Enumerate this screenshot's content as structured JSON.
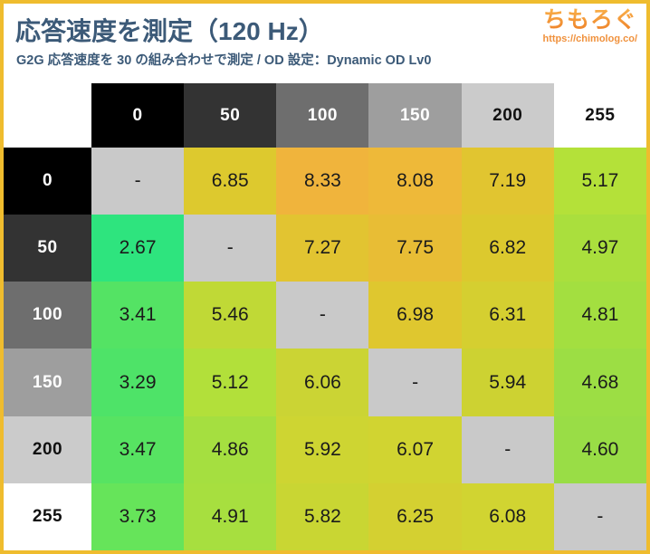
{
  "page": {
    "title": "応答速度を測定（120 Hz）",
    "subtitle": "G2G 応答速度を 30 の組み合わせで測定 / OD 設定：Dynamic OD Lv0",
    "logo": {
      "text": "ちもろぐ",
      "url": "https://chimolog.co/"
    },
    "colors": {
      "frame_border": "#efbc2e",
      "heading_text": "#3c5a78",
      "logo_gradient_top": "#f9b04a",
      "logo_gradient_bottom": "#ed7d26",
      "logo_url_text": "#f0913c",
      "value_text": "#1b1b1b",
      "diagonal_cell": "#c9c9c9"
    }
  },
  "chart_data": {
    "type": "heatmap",
    "title": "応答速度を測定（120 Hz）",
    "subtitle": "G2G 応答速度を 30 の組み合わせで測定 / OD 設定：Dynamic OD Lv0",
    "x_categories": [
      "0",
      "50",
      "100",
      "150",
      "200",
      "255"
    ],
    "y_categories": [
      "0",
      "50",
      "100",
      "150",
      "200",
      "255"
    ],
    "axis_cell_colors": [
      "#000000",
      "#333333",
      "#6e6e6e",
      "#9e9e9e",
      "#cbcbcb",
      "#ffffff"
    ],
    "axis_text_colors": [
      "#ffffff",
      "#ffffff",
      "#ffffff",
      "#ffffff",
      "#111111",
      "#111111"
    ],
    "null_display": "-",
    "value_range_observed": [
      2.67,
      8.33
    ],
    "values": [
      [
        null,
        6.85,
        8.33,
        8.08,
        7.19,
        5.17
      ],
      [
        2.67,
        null,
        7.27,
        7.75,
        6.82,
        4.97
      ],
      [
        3.41,
        5.46,
        null,
        6.98,
        6.31,
        4.81
      ],
      [
        3.29,
        5.12,
        6.06,
        null,
        5.94,
        4.68
      ],
      [
        3.47,
        4.86,
        5.92,
        6.07,
        null,
        4.6
      ],
      [
        3.73,
        4.91,
        5.82,
        6.25,
        6.08,
        null
      ]
    ],
    "cell_colors": [
      [
        "#c9c9c9",
        "#ddc92e",
        "#f0b43c",
        "#eeb939",
        "#e1c530",
        "#b4e139"
      ],
      [
        "#2ee47e",
        "#c9c9c9",
        "#e2c431",
        "#e8bd35",
        "#dcc92e",
        "#aadf3d"
      ],
      [
        "#54e364",
        "#c0d936",
        "#c9c9c9",
        "#dfc72f",
        "#d5cf30",
        "#a3df40"
      ],
      [
        "#4ee368",
        "#b2e03a",
        "#cbd434",
        "#c9c9c9",
        "#cdd232",
        "#9cde44"
      ],
      [
        "#57e362",
        "#a5df40",
        "#ced532",
        "#d1d431",
        "#c9c9c9",
        "#99dd46"
      ],
      [
        "#66e45a",
        "#a7df3f",
        "#c9d633",
        "#d4d031",
        "#d1d431",
        "#c9c9c9"
      ]
    ]
  }
}
